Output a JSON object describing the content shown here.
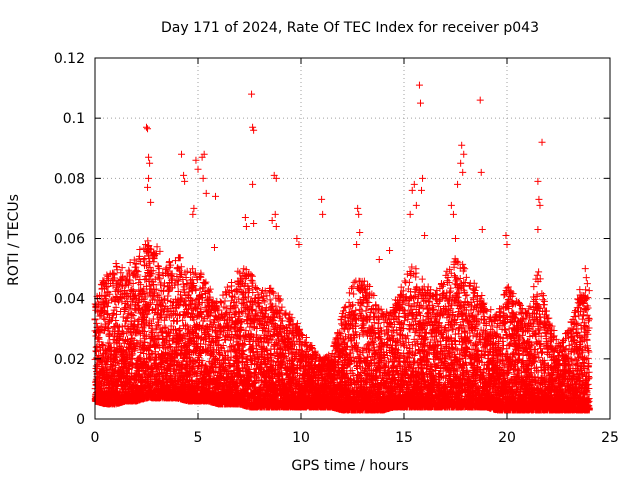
{
  "chart_data": {
    "type": "scatter",
    "title": "Day 171 of 2024, Rate Of TEC Index for receiver p043",
    "xlabel": "GPS time / hours",
    "ylabel": "ROTI / TECUs",
    "xlim": [
      0,
      25
    ],
    "ylim": [
      0,
      0.12
    ],
    "xticks": [
      0,
      5,
      10,
      15,
      20,
      25
    ],
    "xtick_labels": [
      "0",
      "5",
      "10",
      "15",
      "20",
      "25"
    ],
    "yticks": [
      0,
      0.02,
      0.04,
      0.06,
      0.08,
      0.1,
      0.12
    ],
    "ytick_labels": [
      "0",
      "0.02",
      "0.04",
      "0.06",
      "0.08",
      "0.1",
      "0.12"
    ],
    "grid": true,
    "marker": "plus",
    "color": "#ff0000",
    "series": [
      {
        "name": "ROTI",
        "envelope": {
          "x": [
            0.0,
            0.5,
            1.0,
            1.5,
            2.0,
            2.5,
            3.0,
            3.5,
            4.0,
            4.5,
            5.0,
            5.5,
            6.0,
            6.5,
            7.0,
            7.5,
            8.0,
            8.5,
            9.0,
            9.5,
            10.0,
            10.5,
            11.0,
            11.5,
            12.0,
            12.5,
            13.0,
            13.5,
            14.0,
            14.5,
            15.0,
            15.5,
            16.0,
            16.5,
            17.0,
            17.5,
            18.0,
            18.5,
            19.0,
            19.5,
            20.0,
            20.5,
            21.0,
            21.5,
            22.0,
            22.5,
            23.0,
            23.5,
            24.0
          ],
          "low": [
            0.006,
            0.005,
            0.005,
            0.006,
            0.006,
            0.007,
            0.007,
            0.007,
            0.007,
            0.006,
            0.006,
            0.006,
            0.005,
            0.005,
            0.005,
            0.004,
            0.004,
            0.004,
            0.004,
            0.004,
            0.004,
            0.004,
            0.004,
            0.004,
            0.003,
            0.003,
            0.003,
            0.003,
            0.003,
            0.004,
            0.004,
            0.004,
            0.004,
            0.004,
            0.004,
            0.004,
            0.004,
            0.004,
            0.004,
            0.003,
            0.003,
            0.003,
            0.003,
            0.003,
            0.003,
            0.003,
            0.003,
            0.003,
            0.003
          ],
          "high": [
            0.04,
            0.048,
            0.052,
            0.05,
            0.055,
            0.06,
            0.058,
            0.052,
            0.055,
            0.05,
            0.05,
            0.045,
            0.04,
            0.045,
            0.05,
            0.05,
            0.042,
            0.045,
            0.04,
            0.035,
            0.03,
            0.025,
            0.02,
            0.022,
            0.035,
            0.045,
            0.048,
            0.042,
            0.035,
            0.04,
            0.048,
            0.052,
            0.045,
            0.042,
            0.048,
            0.055,
            0.05,
            0.045,
            0.038,
            0.035,
            0.045,
            0.04,
            0.035,
            0.05,
            0.035,
            0.025,
            0.03,
            0.045,
            0.045
          ]
        },
        "outliers": [
          [
            2.5,
            0.097
          ],
          [
            2.55,
            0.0965
          ],
          [
            2.6,
            0.087
          ],
          [
            2.65,
            0.085
          ],
          [
            2.6,
            0.08
          ],
          [
            2.55,
            0.077
          ],
          [
            2.7,
            0.072
          ],
          [
            4.2,
            0.088
          ],
          [
            4.3,
            0.081
          ],
          [
            4.35,
            0.079
          ],
          [
            4.9,
            0.086
          ],
          [
            5.0,
            0.083
          ],
          [
            5.2,
            0.087
          ],
          [
            5.3,
            0.088
          ],
          [
            5.25,
            0.08
          ],
          [
            5.4,
            0.075
          ],
          [
            4.8,
            0.07
          ],
          [
            4.75,
            0.068
          ],
          [
            5.85,
            0.074
          ],
          [
            5.8,
            0.057
          ],
          [
            6.5,
            0.042
          ],
          [
            7.3,
            0.067
          ],
          [
            7.35,
            0.064
          ],
          [
            7.6,
            0.108
          ],
          [
            7.65,
            0.097
          ],
          [
            7.7,
            0.096
          ],
          [
            7.65,
            0.078
          ],
          [
            7.7,
            0.065
          ],
          [
            8.7,
            0.081
          ],
          [
            8.8,
            0.08
          ],
          [
            8.75,
            0.068
          ],
          [
            8.6,
            0.066
          ],
          [
            8.8,
            0.064
          ],
          [
            9.8,
            0.06
          ],
          [
            9.9,
            0.058
          ],
          [
            11.0,
            0.073
          ],
          [
            11.05,
            0.068
          ],
          [
            12.75,
            0.07
          ],
          [
            12.8,
            0.068
          ],
          [
            12.85,
            0.062
          ],
          [
            12.7,
            0.058
          ],
          [
            13.8,
            0.053
          ],
          [
            14.3,
            0.056
          ],
          [
            15.5,
            0.078
          ],
          [
            15.4,
            0.076
          ],
          [
            15.6,
            0.071
          ],
          [
            15.3,
            0.068
          ],
          [
            15.75,
            0.111
          ],
          [
            15.8,
            0.105
          ],
          [
            15.9,
            0.08
          ],
          [
            15.85,
            0.076
          ],
          [
            16.0,
            0.061
          ],
          [
            17.3,
            0.071
          ],
          [
            17.4,
            0.068
          ],
          [
            17.5,
            0.06
          ],
          [
            17.8,
            0.091
          ],
          [
            17.75,
            0.085
          ],
          [
            17.9,
            0.088
          ],
          [
            17.85,
            0.082
          ],
          [
            17.6,
            0.078
          ],
          [
            18.7,
            0.106
          ],
          [
            18.75,
            0.082
          ],
          [
            18.8,
            0.063
          ],
          [
            19.95,
            0.061
          ],
          [
            20.0,
            0.058
          ],
          [
            21.5,
            0.079
          ],
          [
            21.55,
            0.073
          ],
          [
            21.6,
            0.071
          ],
          [
            21.5,
            0.063
          ],
          [
            21.7,
            0.092
          ],
          [
            23.8,
            0.05
          ],
          [
            23.85,
            0.047
          ],
          [
            23.9,
            0.045
          ]
        ]
      }
    ]
  }
}
